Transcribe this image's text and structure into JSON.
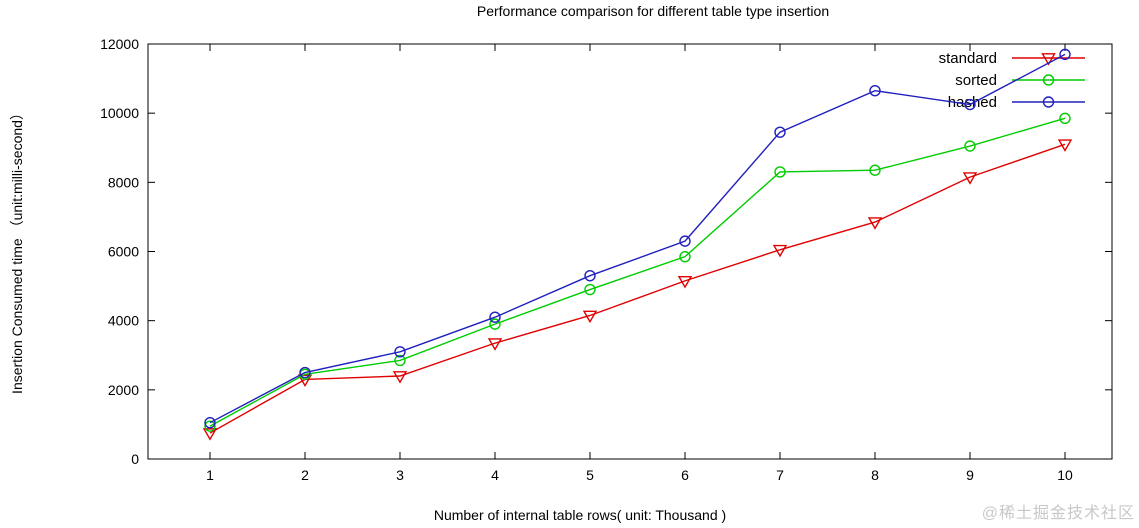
{
  "page": {
    "watermark": "@稀土掘金技术社区",
    "watermark_color": "#c8c8c8",
    "background": "#ffffff"
  },
  "chart_data": {
    "type": "line",
    "title": "Performance comparison for different table type insertion",
    "xlabel": "Number of internal table rows( unit: Thousand )",
    "ylabel": "Insertion Consumed time （unit:milli-second）",
    "x": [
      1,
      2,
      3,
      4,
      5,
      6,
      7,
      8,
      9,
      10
    ],
    "yticks": [
      0,
      2000,
      4000,
      6000,
      8000,
      10000,
      12000
    ],
    "ylim": [
      0,
      12000
    ],
    "grid": false,
    "legend_position": "top-right-inside",
    "series": [
      {
        "name": "standard",
        "color": "#e00000",
        "marker": "triangle-down",
        "values": [
          750,
          2300,
          2400,
          3350,
          4150,
          5150,
          6050,
          6850,
          8150,
          9100
        ]
      },
      {
        "name": "sorted",
        "color": "#00cc00",
        "marker": "circle",
        "values": [
          950,
          2450,
          2850,
          3900,
          4900,
          5850,
          8300,
          8350,
          9050,
          9850
        ]
      },
      {
        "name": "hashed",
        "color": "#2020c0",
        "marker": "circle",
        "values": [
          1050,
          2500,
          3100,
          4100,
          5300,
          6300,
          9450,
          10650,
          10250,
          11700
        ]
      }
    ]
  }
}
